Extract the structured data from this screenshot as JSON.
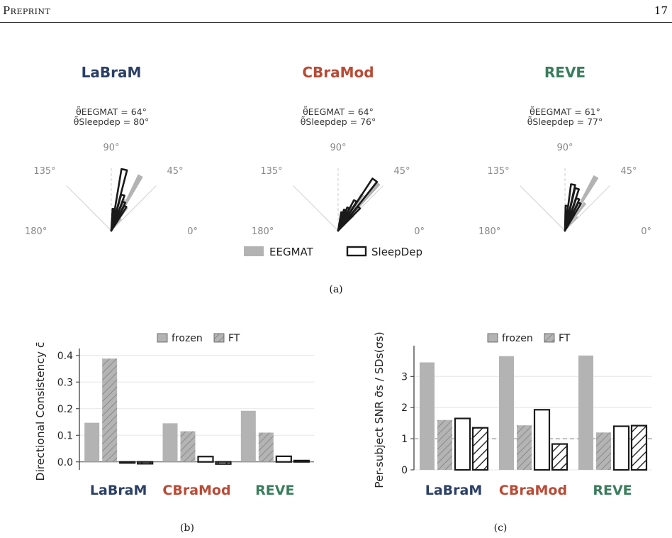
{
  "header": {
    "left": "Preprint",
    "right": "17"
  },
  "models": [
    {
      "name": "LaBraM",
      "color": "#2b3f66",
      "eegmat_line": "θ̃EEGMAT = 64°",
      "sleep_line": "θ̃Sleepdep = 80°"
    },
    {
      "name": "CBraMod",
      "color": "#b94a35",
      "eegmat_line": "θ̃EEGMAT = 64°",
      "sleep_line": "θ̃Sleepdep = 76°"
    },
    {
      "name": "REVE",
      "color": "#3a7d5c",
      "eegmat_line": "θ̃EEGMAT = 61°",
      "sleep_line": "θ̃Sleepdep = 77°"
    }
  ],
  "polar_ticks": [
    "180°",
    "135°",
    "90°",
    "45°",
    "0°"
  ],
  "polar_legend": {
    "a": "EEGMAT",
    "b": "SleepDep"
  },
  "captions": {
    "a": "(a)",
    "b": "(b)",
    "c": "(c)"
  },
  "bar_legend": {
    "frozen": "frozen",
    "ft": "FT"
  },
  "chart_data": [
    {
      "type": "polar-histogram",
      "title": "LaBraM",
      "series": [
        {
          "name": "EEGMAT",
          "bins_deg": [
            50,
            56,
            62,
            68,
            74
          ],
          "values": [
            0.25,
            0.45,
            1.0,
            0.55,
            0.3
          ]
        },
        {
          "name": "SleepDep",
          "bins_deg": [
            60,
            66,
            72,
            78,
            84
          ],
          "values": [
            0.45,
            0.5,
            0.6,
            1.0,
            0.35
          ]
        }
      ],
      "theta_ticks": [
        "180°",
        "135°",
        "90°",
        "45°",
        "0°"
      ]
    },
    {
      "type": "polar-histogram",
      "title": "CBraMod",
      "series": [
        {
          "name": "EEGMAT",
          "bins_deg": [
            44,
            50,
            56,
            62,
            68
          ],
          "values": [
            0.35,
            1.0,
            0.7,
            0.45,
            0.3
          ]
        },
        {
          "name": "SleepDep",
          "bins_deg": [
            48,
            54,
            60,
            66,
            72,
            78
          ],
          "values": [
            0.5,
            1.0,
            0.55,
            0.4,
            0.35,
            0.3
          ]
        }
      ],
      "theta_ticks": [
        "180°",
        "135°",
        "90°",
        "45°",
        "0°"
      ]
    },
    {
      "type": "polar-histogram",
      "title": "REVE",
      "series": [
        {
          "name": "EEGMAT",
          "bins_deg": [
            48,
            54,
            60,
            66,
            72
          ],
          "values": [
            0.3,
            0.55,
            1.0,
            0.45,
            0.25
          ]
        },
        {
          "name": "SleepDep",
          "bins_deg": [
            62,
            68,
            74,
            80,
            86
          ],
          "values": [
            0.5,
            0.55,
            0.7,
            0.75,
            0.4
          ]
        }
      ],
      "theta_ticks": [
        "180°",
        "135°",
        "90°",
        "45°",
        "0°"
      ]
    },
    {
      "type": "bar",
      "ylabel": "Directional Consistency c̄",
      "categories": [
        "LaBraM",
        "CBraMod",
        "REVE"
      ],
      "ylim": [
        -0.03,
        0.41
      ],
      "yticks": [
        "0.0",
        "0.1",
        "0.2",
        "0.3",
        "0.4"
      ],
      "series": [
        {
          "name": "frozen",
          "dataset": "EEGMAT",
          "values": [
            0.147,
            0.145,
            0.192
          ]
        },
        {
          "name": "FT",
          "dataset": "EEGMAT",
          "values": [
            0.388,
            0.115,
            0.11
          ]
        },
        {
          "name": "frozen",
          "dataset": "SleepDep",
          "values": [
            -0.003,
            0.02,
            0.021
          ]
        },
        {
          "name": "FT",
          "dataset": "SleepDep",
          "values": [
            -0.007,
            -0.008,
            0.005
          ]
        }
      ]
    },
    {
      "type": "bar",
      "ylabel": "Per-subject SNR  σ̄s / SDs(σs)",
      "categories": [
        "LaBraM",
        "CBraMod",
        "REVE"
      ],
      "ylim": [
        0,
        3.85
      ],
      "yticks": [
        "0",
        "1",
        "2",
        "3"
      ],
      "reference_line": 1,
      "series": [
        {
          "name": "frozen",
          "dataset": "EEGMAT",
          "values": [
            3.45,
            3.65,
            3.67
          ]
        },
        {
          "name": "FT",
          "dataset": "EEGMAT",
          "values": [
            1.6,
            1.43,
            1.2
          ]
        },
        {
          "name": "frozen",
          "dataset": "SleepDep",
          "values": [
            1.65,
            1.93,
            1.4
          ]
        },
        {
          "name": "FT",
          "dataset": "SleepDep",
          "values": [
            1.35,
            0.83,
            1.42
          ]
        }
      ]
    }
  ]
}
